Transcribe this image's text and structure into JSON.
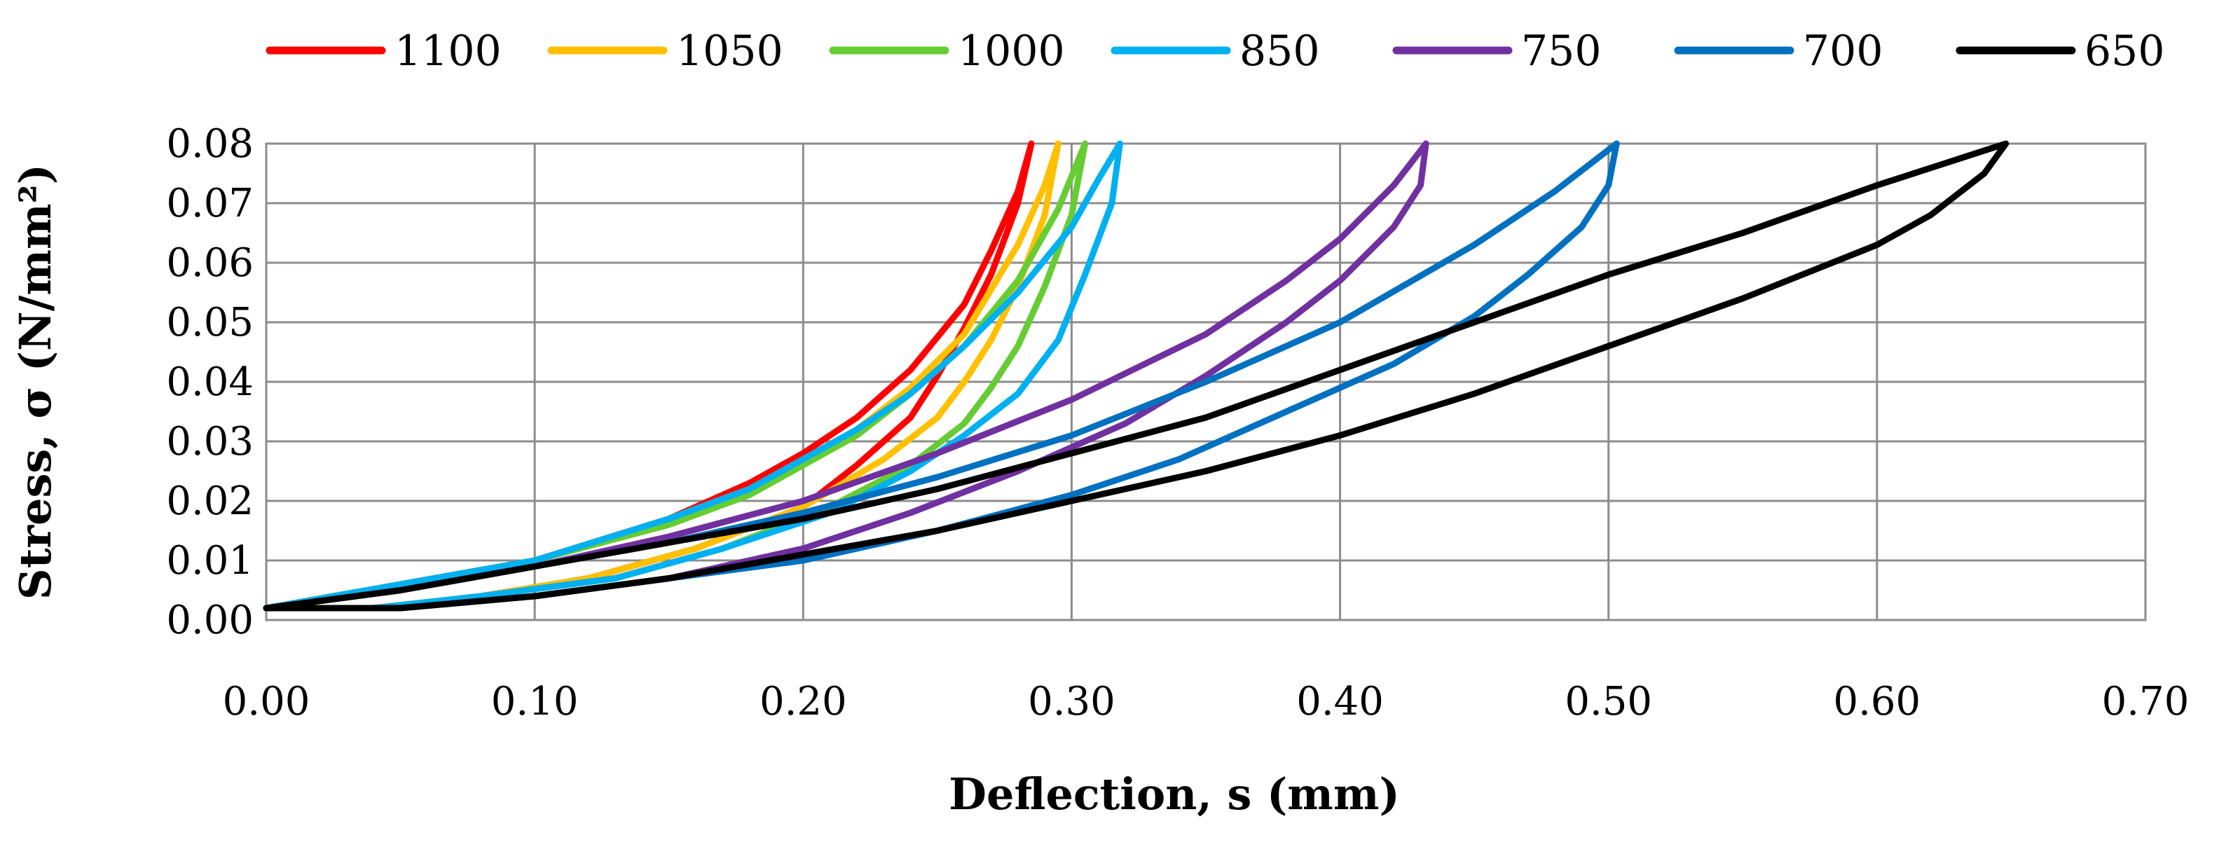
{
  "chart_data": {
    "type": "line",
    "title": "",
    "xlabel": "Deflection, s (mm)",
    "ylabel": "Stress, σ (N/mm²)",
    "xlim": [
      0,
      0.7
    ],
    "ylim": [
      0,
      0.08
    ],
    "x_ticks": [
      "0.00",
      "0.10",
      "0.20",
      "0.30",
      "0.40",
      "0.50",
      "0.60",
      "0.70"
    ],
    "y_ticks": [
      "0.00",
      "0.01",
      "0.02",
      "0.03",
      "0.04",
      "0.05",
      "0.06",
      "0.07",
      "0.08"
    ],
    "grid": true,
    "legend_position": "top",
    "series": [
      {
        "name": "1100",
        "color": "#ff0000",
        "loading": [
          [
            0.0,
            0.002
          ],
          [
            0.05,
            0.006
          ],
          [
            0.1,
            0.01
          ],
          [
            0.15,
            0.017
          ],
          [
            0.18,
            0.023
          ],
          [
            0.2,
            0.028
          ],
          [
            0.22,
            0.034
          ],
          [
            0.24,
            0.042
          ],
          [
            0.26,
            0.053
          ],
          [
            0.27,
            0.062
          ],
          [
            0.28,
            0.072
          ],
          [
            0.285,
            0.08
          ]
        ],
        "unloading": [
          [
            0.285,
            0.08
          ],
          [
            0.28,
            0.07
          ],
          [
            0.27,
            0.058
          ],
          [
            0.26,
            0.049
          ],
          [
            0.25,
            0.041
          ],
          [
            0.24,
            0.034
          ],
          [
            0.22,
            0.026
          ],
          [
            0.2,
            0.019
          ],
          [
            0.16,
            0.012
          ],
          [
            0.12,
            0.007
          ],
          [
            0.08,
            0.004
          ],
          [
            0.04,
            0.002
          ],
          [
            0.0,
            0.002
          ]
        ]
      },
      {
        "name": "1050",
        "color": "#ffc000",
        "loading": [
          [
            0.0,
            0.002
          ],
          [
            0.05,
            0.006
          ],
          [
            0.1,
            0.01
          ],
          [
            0.15,
            0.017
          ],
          [
            0.18,
            0.022
          ],
          [
            0.2,
            0.027
          ],
          [
            0.22,
            0.032
          ],
          [
            0.24,
            0.039
          ],
          [
            0.26,
            0.048
          ],
          [
            0.28,
            0.063
          ],
          [
            0.29,
            0.073
          ],
          [
            0.295,
            0.08
          ]
        ],
        "unloading": [
          [
            0.295,
            0.08
          ],
          [
            0.29,
            0.068
          ],
          [
            0.28,
            0.056
          ],
          [
            0.27,
            0.047
          ],
          [
            0.26,
            0.04
          ],
          [
            0.25,
            0.034
          ],
          [
            0.23,
            0.027
          ],
          [
            0.2,
            0.019
          ],
          [
            0.16,
            0.012
          ],
          [
            0.12,
            0.007
          ],
          [
            0.08,
            0.004
          ],
          [
            0.04,
            0.002
          ],
          [
            0.0,
            0.002
          ]
        ]
      },
      {
        "name": "1000",
        "color": "#66cc33",
        "loading": [
          [
            0.0,
            0.002
          ],
          [
            0.05,
            0.006
          ],
          [
            0.1,
            0.01
          ],
          [
            0.15,
            0.016
          ],
          [
            0.18,
            0.021
          ],
          [
            0.2,
            0.026
          ],
          [
            0.22,
            0.031
          ],
          [
            0.24,
            0.038
          ],
          [
            0.26,
            0.046
          ],
          [
            0.28,
            0.057
          ],
          [
            0.295,
            0.069
          ],
          [
            0.305,
            0.08
          ]
        ],
        "unloading": [
          [
            0.305,
            0.08
          ],
          [
            0.3,
            0.068
          ],
          [
            0.29,
            0.056
          ],
          [
            0.28,
            0.046
          ],
          [
            0.27,
            0.039
          ],
          [
            0.26,
            0.033
          ],
          [
            0.24,
            0.026
          ],
          [
            0.21,
            0.019
          ],
          [
            0.17,
            0.012
          ],
          [
            0.13,
            0.007
          ],
          [
            0.08,
            0.004
          ],
          [
            0.04,
            0.002
          ],
          [
            0.0,
            0.002
          ]
        ]
      },
      {
        "name": "850",
        "color": "#00b0f0",
        "loading": [
          [
            0.0,
            0.002
          ],
          [
            0.05,
            0.006
          ],
          [
            0.1,
            0.01
          ],
          [
            0.15,
            0.017
          ],
          [
            0.18,
            0.022
          ],
          [
            0.2,
            0.027
          ],
          [
            0.22,
            0.032
          ],
          [
            0.24,
            0.038
          ],
          [
            0.26,
            0.046
          ],
          [
            0.28,
            0.055
          ],
          [
            0.3,
            0.066
          ],
          [
            0.31,
            0.074
          ],
          [
            0.318,
            0.08
          ]
        ],
        "unloading": [
          [
            0.318,
            0.08
          ],
          [
            0.315,
            0.07
          ],
          [
            0.305,
            0.058
          ],
          [
            0.295,
            0.047
          ],
          [
            0.28,
            0.038
          ],
          [
            0.26,
            0.031
          ],
          [
            0.24,
            0.025
          ],
          [
            0.21,
            0.018
          ],
          [
            0.17,
            0.012
          ],
          [
            0.13,
            0.007
          ],
          [
            0.08,
            0.004
          ],
          [
            0.04,
            0.002
          ],
          [
            0.0,
            0.002
          ]
        ]
      },
      {
        "name": "750",
        "color": "#7030a0",
        "loading": [
          [
            0.0,
            0.002
          ],
          [
            0.05,
            0.005
          ],
          [
            0.1,
            0.009
          ],
          [
            0.15,
            0.014
          ],
          [
            0.2,
            0.02
          ],
          [
            0.25,
            0.028
          ],
          [
            0.3,
            0.037
          ],
          [
            0.35,
            0.048
          ],
          [
            0.38,
            0.057
          ],
          [
            0.4,
            0.064
          ],
          [
            0.42,
            0.073
          ],
          [
            0.432,
            0.08
          ]
        ],
        "unloading": [
          [
            0.432,
            0.08
          ],
          [
            0.43,
            0.073
          ],
          [
            0.42,
            0.066
          ],
          [
            0.4,
            0.057
          ],
          [
            0.38,
            0.05
          ],
          [
            0.35,
            0.041
          ],
          [
            0.32,
            0.033
          ],
          [
            0.28,
            0.025
          ],
          [
            0.24,
            0.018
          ],
          [
            0.2,
            0.012
          ],
          [
            0.15,
            0.007
          ],
          [
            0.1,
            0.004
          ],
          [
            0.05,
            0.002
          ],
          [
            0.0,
            0.002
          ]
        ]
      },
      {
        "name": "700",
        "color": "#0070c0",
        "loading": [
          [
            0.0,
            0.002
          ],
          [
            0.05,
            0.005
          ],
          [
            0.1,
            0.009
          ],
          [
            0.15,
            0.013
          ],
          [
            0.2,
            0.018
          ],
          [
            0.25,
            0.024
          ],
          [
            0.3,
            0.031
          ],
          [
            0.35,
            0.04
          ],
          [
            0.4,
            0.05
          ],
          [
            0.45,
            0.063
          ],
          [
            0.48,
            0.072
          ],
          [
            0.503,
            0.08
          ]
        ],
        "unloading": [
          [
            0.503,
            0.08
          ],
          [
            0.5,
            0.073
          ],
          [
            0.49,
            0.066
          ],
          [
            0.47,
            0.058
          ],
          [
            0.45,
            0.051
          ],
          [
            0.42,
            0.043
          ],
          [
            0.38,
            0.035
          ],
          [
            0.34,
            0.027
          ],
          [
            0.3,
            0.021
          ],
          [
            0.25,
            0.015
          ],
          [
            0.2,
            0.01
          ],
          [
            0.15,
            0.007
          ],
          [
            0.1,
            0.004
          ],
          [
            0.05,
            0.002
          ],
          [
            0.0,
            0.002
          ]
        ]
      },
      {
        "name": "650",
        "color": "#000000",
        "loading": [
          [
            0.0,
            0.002
          ],
          [
            0.05,
            0.005
          ],
          [
            0.1,
            0.009
          ],
          [
            0.15,
            0.013
          ],
          [
            0.2,
            0.017
          ],
          [
            0.25,
            0.022
          ],
          [
            0.3,
            0.028
          ],
          [
            0.35,
            0.034
          ],
          [
            0.4,
            0.042
          ],
          [
            0.45,
            0.05
          ],
          [
            0.5,
            0.058
          ],
          [
            0.55,
            0.065
          ],
          [
            0.6,
            0.073
          ],
          [
            0.648,
            0.08
          ]
        ],
        "unloading": [
          [
            0.648,
            0.08
          ],
          [
            0.64,
            0.075
          ],
          [
            0.62,
            0.068
          ],
          [
            0.6,
            0.063
          ],
          [
            0.55,
            0.054
          ],
          [
            0.5,
            0.046
          ],
          [
            0.45,
            0.038
          ],
          [
            0.4,
            0.031
          ],
          [
            0.35,
            0.025
          ],
          [
            0.3,
            0.02
          ],
          [
            0.25,
            0.015
          ],
          [
            0.2,
            0.011
          ],
          [
            0.15,
            0.007
          ],
          [
            0.1,
            0.004
          ],
          [
            0.05,
            0.002
          ],
          [
            0.0,
            0.002
          ]
        ]
      }
    ]
  }
}
